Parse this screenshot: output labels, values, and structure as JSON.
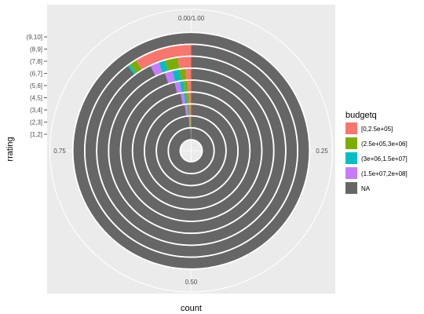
{
  "chart_data": {
    "type": "bar",
    "coord": "polar",
    "title": "",
    "xlabel": "count",
    "ylabel": "rrating",
    "categories": [
      "[1,2]",
      "(2,3]",
      "(3,4]",
      "(4,5]",
      "(5,6]",
      "(6,7]",
      "(7,8]",
      "(8,9]",
      "(9,10]"
    ],
    "series": [
      {
        "name": "[0,2.5e+05]",
        "values": [
          0.001,
          0.003,
          0.006,
          0.007,
          0.008,
          0.011,
          0.023,
          0.087,
          0.0
        ]
      },
      {
        "name": "(2.5e+05,3e+06]",
        "values": [
          0.001,
          0.003,
          0.005,
          0.007,
          0.009,
          0.012,
          0.022,
          0.011,
          0.0
        ]
      },
      {
        "name": "(3e+06,1.5e+07]",
        "values": [
          0.001,
          0.002,
          0.004,
          0.006,
          0.009,
          0.014,
          0.011,
          0.004,
          0.0
        ]
      },
      {
        "name": "(1.5e+07,2e+08]",
        "values": [
          0.001,
          0.003,
          0.007,
          0.009,
          0.012,
          0.015,
          0.015,
          0.0,
          0.0
        ]
      },
      {
        "name": "NA",
        "values": [
          0.996,
          0.989,
          0.978,
          0.971,
          0.962,
          0.948,
          0.929,
          0.898,
          1.0
        ]
      }
    ],
    "theta_ticks": [
      "0.00/1.00",
      "0.25",
      "0.50",
      "0.75"
    ],
    "legend": {
      "title": "budgetq",
      "placement": "right",
      "items": [
        {
          "label": "[0,2.5e+05]",
          "color": "#F8766D"
        },
        {
          "label": "(2.5e+05,3e+06]",
          "color": "#7CAE00"
        },
        {
          "label": "(3e+06,1.5e+07]",
          "color": "#00BFC4"
        },
        {
          "label": "(1.5e+07,2e+08]",
          "color": "#C77CFF"
        },
        {
          "label": "NA",
          "color": "#666666"
        }
      ]
    },
    "panel_background": "#EBEBEB",
    "grid": true
  }
}
